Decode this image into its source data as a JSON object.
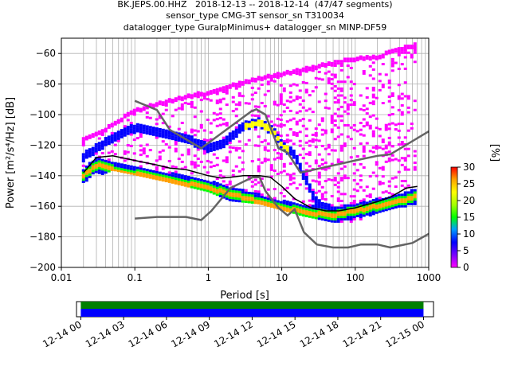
{
  "chart_data": [
    {
      "type": "heatmap",
      "title_lines": [
        "BK.JEPS.00.HHZ   2018-12-13 -- 2018-12-14  (47/47 segments)",
        "sensor_type CMG-3T sensor_sn T310034",
        "datalogger_type GuralpMinimus+ datalogger_sn MINP-DF59"
      ],
      "xlabel": "Period [s]",
      "ylabel": "Power [m²/s⁴/Hz] [dB]",
      "xscale": "log",
      "xlim": [
        0.01,
        1000
      ],
      "ylim": [
        -200,
        -50
      ],
      "xticks": [
        {
          "value": 0.01,
          "label": "0.01"
        },
        {
          "value": 0.1,
          "label": "0.1"
        },
        {
          "value": 1,
          "label": "1"
        },
        {
          "value": 10,
          "label": "10"
        },
        {
          "value": 100,
          "label": "100"
        },
        {
          "value": 1000,
          "label": "1000"
        }
      ],
      "yticks": [
        -200,
        -180,
        -160,
        -140,
        -120,
        -100,
        -80,
        -60
      ],
      "grid": true,
      "colorbar": {
        "label": "[%]",
        "min": 0,
        "max": 30,
        "ticks": [
          0,
          5,
          10,
          15,
          20,
          25,
          30
        ],
        "colors": [
          "#ff00ff",
          "#7d00ff",
          "#0000ff",
          "#00a0ff",
          "#00ff00",
          "#a0ff00",
          "#ffff00",
          "#ffa000",
          "#ff0000"
        ]
      },
      "series": [
        {
          "name": "",
          "color": "#000000",
          "points": [
            [
              0.02,
              -138
            ],
            [
              0.03,
              -128
            ],
            [
              0.05,
              -127
            ],
            [
              0.1,
              -130
            ],
            [
              0.2,
              -133
            ],
            [
              0.3,
              -135
            ],
            [
              0.5,
              -136
            ],
            [
              1,
              -140
            ],
            [
              1.5,
              -141.5
            ],
            [
              2,
              -141
            ],
            [
              3,
              -140
            ],
            [
              5,
              -140
            ],
            [
              7,
              -141
            ],
            [
              10,
              -147
            ],
            [
              15,
              -155
            ],
            [
              25,
              -161
            ],
            [
              40,
              -163
            ],
            [
              60,
              -163
            ],
            [
              100,
              -161
            ],
            [
              200,
              -157
            ],
            [
              300,
              -154
            ],
            [
              500,
              -148
            ],
            [
              700,
              -147
            ]
          ]
        },
        {
          "name": "",
          "color": "#646464",
          "points": [
            [
              0.1,
              -91
            ],
            [
              0.2,
              -97
            ],
            [
              0.3,
              -110
            ],
            [
              0.8,
              -122
            ],
            [
              3.8,
              -98
            ],
            [
              4.5,
              -96.5
            ],
            [
              6,
              -100
            ],
            [
              9,
              -122
            ],
            [
              12,
              -125
            ],
            [
              18,
              -138
            ],
            [
              100,
              -130
            ],
            [
              200,
              -127
            ],
            [
              300,
              -126
            ],
            [
              1000,
              -111
            ]
          ]
        },
        {
          "name": "",
          "color": "#646464",
          "points": [
            [
              0.1,
              -168
            ],
            [
              0.2,
              -167
            ],
            [
              0.5,
              -167
            ],
            [
              0.8,
              -169
            ],
            [
              1.1,
              -163
            ],
            [
              2,
              -148
            ],
            [
              4,
              -141
            ],
            [
              5,
              -141
            ],
            [
              6,
              -150
            ],
            [
              9,
              -161
            ],
            [
              12,
              -166
            ],
            [
              15,
              -162
            ],
            [
              20,
              -177
            ],
            [
              30,
              -185
            ],
            [
              50,
              -187
            ],
            [
              80,
              -187
            ],
            [
              120,
              -185
            ],
            [
              200,
              -185
            ],
            [
              300,
              -187
            ],
            [
              600,
              -184
            ],
            [
              1000,
              -178
            ]
          ]
        }
      ],
      "density": {
        "upper_envelope": [
          [
            0.02,
            -115
          ],
          [
            0.04,
            -108
          ],
          [
            0.1,
            -96
          ],
          [
            0.2,
            -92
          ],
          [
            0.4,
            -88
          ],
          [
            0.8,
            -85
          ],
          [
            1,
            -85
          ],
          [
            2,
            -80
          ],
          [
            4,
            -76
          ],
          [
            10,
            -72
          ],
          [
            40,
            -66
          ],
          [
            100,
            -62
          ],
          [
            200,
            -61
          ],
          [
            500,
            -54
          ],
          [
            700,
            -53
          ]
        ],
        "lower_envelope": [
          [
            0.02,
            -144
          ],
          [
            0.05,
            -136
          ],
          [
            0.1,
            -139
          ],
          [
            0.3,
            -144
          ],
          [
            1,
            -150
          ],
          [
            2,
            -156
          ],
          [
            5,
            -158
          ],
          [
            10,
            -162
          ],
          [
            20,
            -166
          ],
          [
            50,
            -170
          ],
          [
            100,
            -170
          ],
          [
            200,
            -164
          ],
          [
            400,
            -160
          ],
          [
            700,
            -160
          ]
        ],
        "mode_curve": [
          [
            0.02,
            -140
          ],
          [
            0.03,
            -133
          ],
          [
            0.05,
            -136
          ],
          [
            0.1,
            -139
          ],
          [
            0.3,
            -143
          ],
          [
            1,
            -148
          ],
          [
            2,
            -152
          ],
          [
            5,
            -157
          ],
          [
            10,
            -161
          ],
          [
            20,
            -164
          ],
          [
            50,
            -166
          ],
          [
            100,
            -163
          ],
          [
            200,
            -160
          ],
          [
            400,
            -157
          ],
          [
            700,
            -153
          ]
        ],
        "microseism_band": [
          [
            0.02,
            -128
          ],
          [
            0.05,
            -115
          ],
          [
            0.1,
            -109
          ],
          [
            0.3,
            -113
          ],
          [
            0.6,
            -117
          ],
          [
            1,
            -122
          ],
          [
            1.5,
            -120
          ],
          [
            3,
            -108
          ],
          [
            5,
            -105
          ],
          [
            8,
            -112
          ],
          [
            10,
            -120
          ],
          [
            15,
            -126
          ],
          [
            20,
            -140
          ],
          [
            30,
            -158
          ],
          [
            50,
            -163
          ]
        ]
      }
    },
    {
      "type": "timeline",
      "xlim_hours": [
        0,
        25
      ],
      "data_span_hours": [
        0.3,
        24.3
      ],
      "tick_labels": [
        "12-14 00",
        "12-14 03",
        "12-14 06",
        "12-14 09",
        "12-14 12",
        "12-14 15",
        "12-14 18",
        "12-14 21",
        "12-15 00"
      ],
      "tick_hours": [
        0.3,
        3.3,
        6.3,
        9.3,
        12.3,
        15.3,
        18.3,
        21.3,
        24.3
      ],
      "bar_colors": {
        "top": "#008000",
        "bottom": "#0000ff"
      }
    }
  ]
}
